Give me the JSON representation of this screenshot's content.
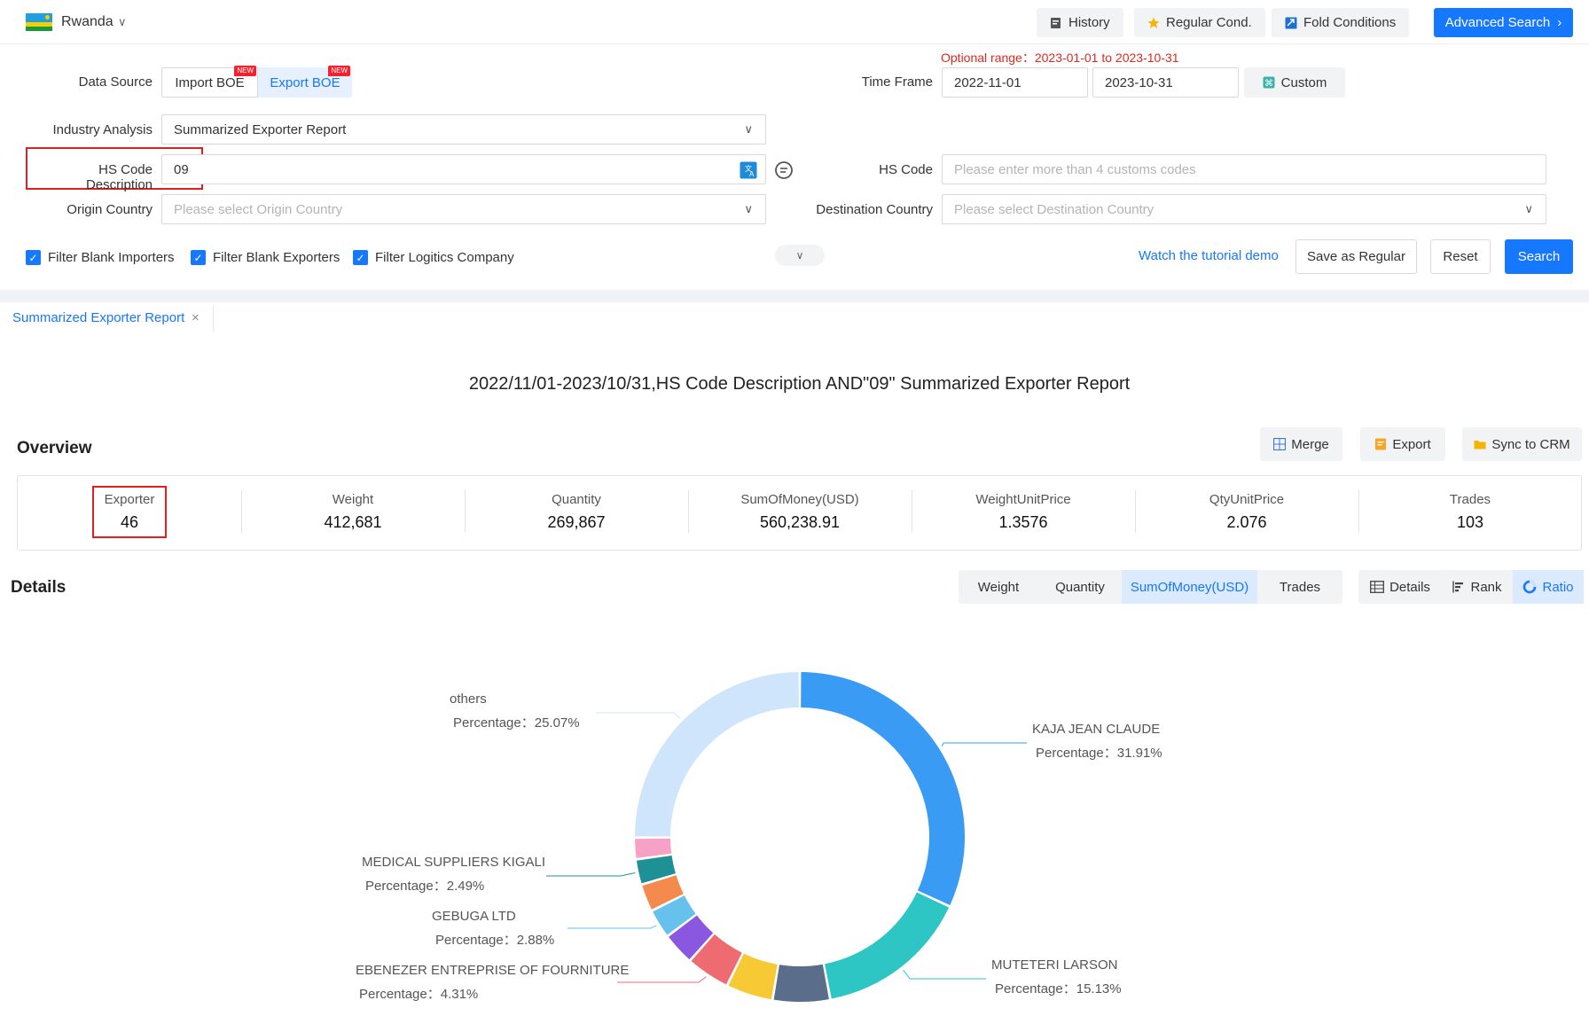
{
  "header": {
    "country": "Rwanda",
    "buttons": {
      "history": "History",
      "regular": "Regular Cond.",
      "fold": "Fold Conditions",
      "advanced": "Advanced Search"
    }
  },
  "form": {
    "optional_range": "Optional range：2023-01-01 to 2023-10-31",
    "data_source_label": "Data Source",
    "import_boe": "Import BOE",
    "export_boe": "Export BOE",
    "new_tag": "NEW",
    "time_frame_label": "Time Frame",
    "time_from": "2022-11-01",
    "time_to": "2023-10-31",
    "custom": "Custom",
    "industry_label": "Industry Analysis",
    "industry_value": "Summarized Exporter Report",
    "hs_desc_label": "HS Code Description",
    "hs_desc_value": "09",
    "hs_code_label": "HS Code",
    "hs_code_placeholder": "Please enter more than 4 customs codes",
    "origin_label": "Origin Country",
    "origin_placeholder": "Please select Origin Country",
    "dest_label": "Destination Country",
    "dest_placeholder": "Please select Destination Country",
    "filters": [
      "Filter Blank Importers",
      "Filter Blank Exporters",
      "Filter Logitics Company"
    ],
    "tutorial": "Watch the tutorial demo",
    "save_regular": "Save as Regular",
    "reset": "Reset",
    "search": "Search"
  },
  "tab": {
    "label": "Summarized Exporter Report",
    "close": "×"
  },
  "report_title": "2022/11/01-2023/10/31,HS Code Description AND\"09\" Summarized Exporter Report",
  "overview": {
    "title": "Overview",
    "buttons": {
      "merge": "Merge",
      "export": "Export",
      "sync": "Sync to CRM"
    },
    "stats": [
      {
        "label": "Exporter",
        "value": "46"
      },
      {
        "label": "Weight",
        "value": "412,681"
      },
      {
        "label": "Quantity",
        "value": "269,867"
      },
      {
        "label": "SumOfMoney(USD)",
        "value": "560,238.91"
      },
      {
        "label": "WeightUnitPrice",
        "value": "1.3576"
      },
      {
        "label": "QtyUnitPrice",
        "value": "2.076"
      },
      {
        "label": "Trades",
        "value": "103"
      }
    ]
  },
  "details": {
    "title": "Details",
    "metrics": [
      "Weight",
      "Quantity",
      "SumOfMoney(USD)",
      "Trades"
    ],
    "active_metric": "SumOfMoney(USD)",
    "views": [
      "Details",
      "Rank",
      "Ratio"
    ],
    "active_view": "Ratio"
  },
  "colors": {
    "accent": "#1677ff",
    "highlight_box": "#e02020"
  },
  "chart_data": {
    "type": "pie",
    "style": "donut",
    "slices": [
      {
        "name": "KAJA JEAN CLAUDE",
        "label": "Percentage：31.91%",
        "value": 31.91,
        "color": "#3a9bf5"
      },
      {
        "name": "MUTETERI LARSON",
        "label": "Percentage：15.13%",
        "value": 15.13,
        "color": "#2ec6c5"
      },
      {
        "name": "",
        "value": 5.6,
        "color": "#5a6e8c"
      },
      {
        "name": "",
        "value": 4.6,
        "color": "#f6c935"
      },
      {
        "name": "EBENEZER ENTREPRISE OF FOURNITURE",
        "label": "Percentage：4.31%",
        "value": 4.31,
        "color": "#ef6b72"
      },
      {
        "name": "",
        "value": 3.2,
        "color": "#8957e0"
      },
      {
        "name": "GEBUGA LTD",
        "label": "Percentage：2.88%",
        "value": 2.88,
        "color": "#66c1ec"
      },
      {
        "name": "",
        "value": 2.7,
        "color": "#f58a4e"
      },
      {
        "name": "MEDICAL SUPPLIERS KIGALI",
        "label": "Percentage：2.49%",
        "value": 2.49,
        "color": "#1e9197"
      },
      {
        "name": "",
        "value": 2.1,
        "color": "#f7a1c6"
      },
      {
        "name": "others",
        "label": "Percentage：25.07%",
        "value": 25.07,
        "color": "#cfe5fb"
      }
    ]
  }
}
